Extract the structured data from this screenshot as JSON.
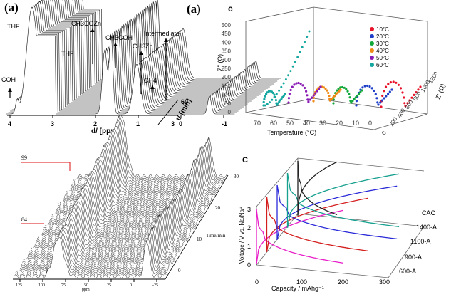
{
  "panel_labels": {
    "a": "(a)",
    "b": "(b)",
    "c_lower": "c",
    "c_upper": "C"
  },
  "chart_data": [
    {
      "id": "nmr_top",
      "type": "line",
      "xlabel": "d/ [ppm]",
      "zlabel": "t/ [min]",
      "x_ticks": [
        4,
        3,
        2,
        1,
        0,
        -1
      ],
      "t_ticks": [
        3,
        60
      ],
      "peaks": [
        {
          "label": "COH",
          "ppm": 3.9
        },
        {
          "label": "THF",
          "ppm": 3.6
        },
        {
          "label": "THF",
          "ppm": 1.8
        },
        {
          "label": "CH3COZn",
          "ppm": 1.7
        },
        {
          "label": "CH3COH",
          "ppm": 1.1
        },
        {
          "label": "CH3Zn",
          "ppm": -0.6
        },
        {
          "label": "CH4",
          "ppm": -1.0
        },
        {
          "label": "Intermediate",
          "ppm": -1.4
        }
      ]
    },
    {
      "id": "nmr_bottom",
      "type": "line",
      "xlabel": "ppm",
      "zlabel": "Time/min",
      "x_ticks": [
        "125",
        "100",
        "75",
        "50",
        "25",
        "0",
        "-25"
      ],
      "time_ticks": [
        0,
        10,
        20,
        30
      ],
      "markers": [
        "99",
        "84"
      ]
    },
    {
      "id": "impedance",
      "type": "scatter",
      "xlabel": "Temperature (°C)",
      "ylabel": "Z'' (Ω)",
      "zlabel": "Z' (Ω)",
      "temperature_ticks": [
        70,
        60,
        50,
        40,
        30,
        20,
        10,
        0
      ],
      "z2_ticks": [
        0,
        50,
        100,
        150,
        200,
        250,
        300,
        350,
        400,
        450,
        500
      ],
      "z1_ticks": [
        0,
        200,
        400,
        600,
        800,
        1000,
        1200
      ],
      "series": [
        {
          "name": "10°C",
          "color": "#e8132a",
          "temperature": 10
        },
        {
          "name": "20°C",
          "color": "#1f3fc9",
          "temperature": 20
        },
        {
          "name": "30°C",
          "color": "#11a83a",
          "temperature": 30
        },
        {
          "name": "40°C",
          "color": "#f08a17",
          "temperature": 40
        },
        {
          "name": "50°C",
          "color": "#8a1bb5",
          "temperature": 50
        },
        {
          "name": "60°C",
          "color": "#16a8a0",
          "temperature": 60
        }
      ]
    },
    {
      "id": "charge_discharge",
      "type": "line",
      "xlabel": "Capacity / mAhg⁻¹",
      "ylabel": "Voltage / V vs. Na/Na⁺",
      "x_ticks": [
        0,
        100,
        200,
        300
      ],
      "y_ticks": [
        0,
        1,
        2,
        3
      ],
      "series": [
        {
          "name": "600-A",
          "color": "#e81ec8",
          "capacity": 210
        },
        {
          "name": "900-A",
          "color": "#d41e1e",
          "capacity": 245
        },
        {
          "name": "1100-A",
          "color": "#2a2ad8",
          "capacity": 290
        },
        {
          "name": "1400-A",
          "color": "#16a08e",
          "capacity": 270
        },
        {
          "name": "CAC",
          "color": "#222222",
          "capacity": 95
        }
      ]
    }
  ]
}
